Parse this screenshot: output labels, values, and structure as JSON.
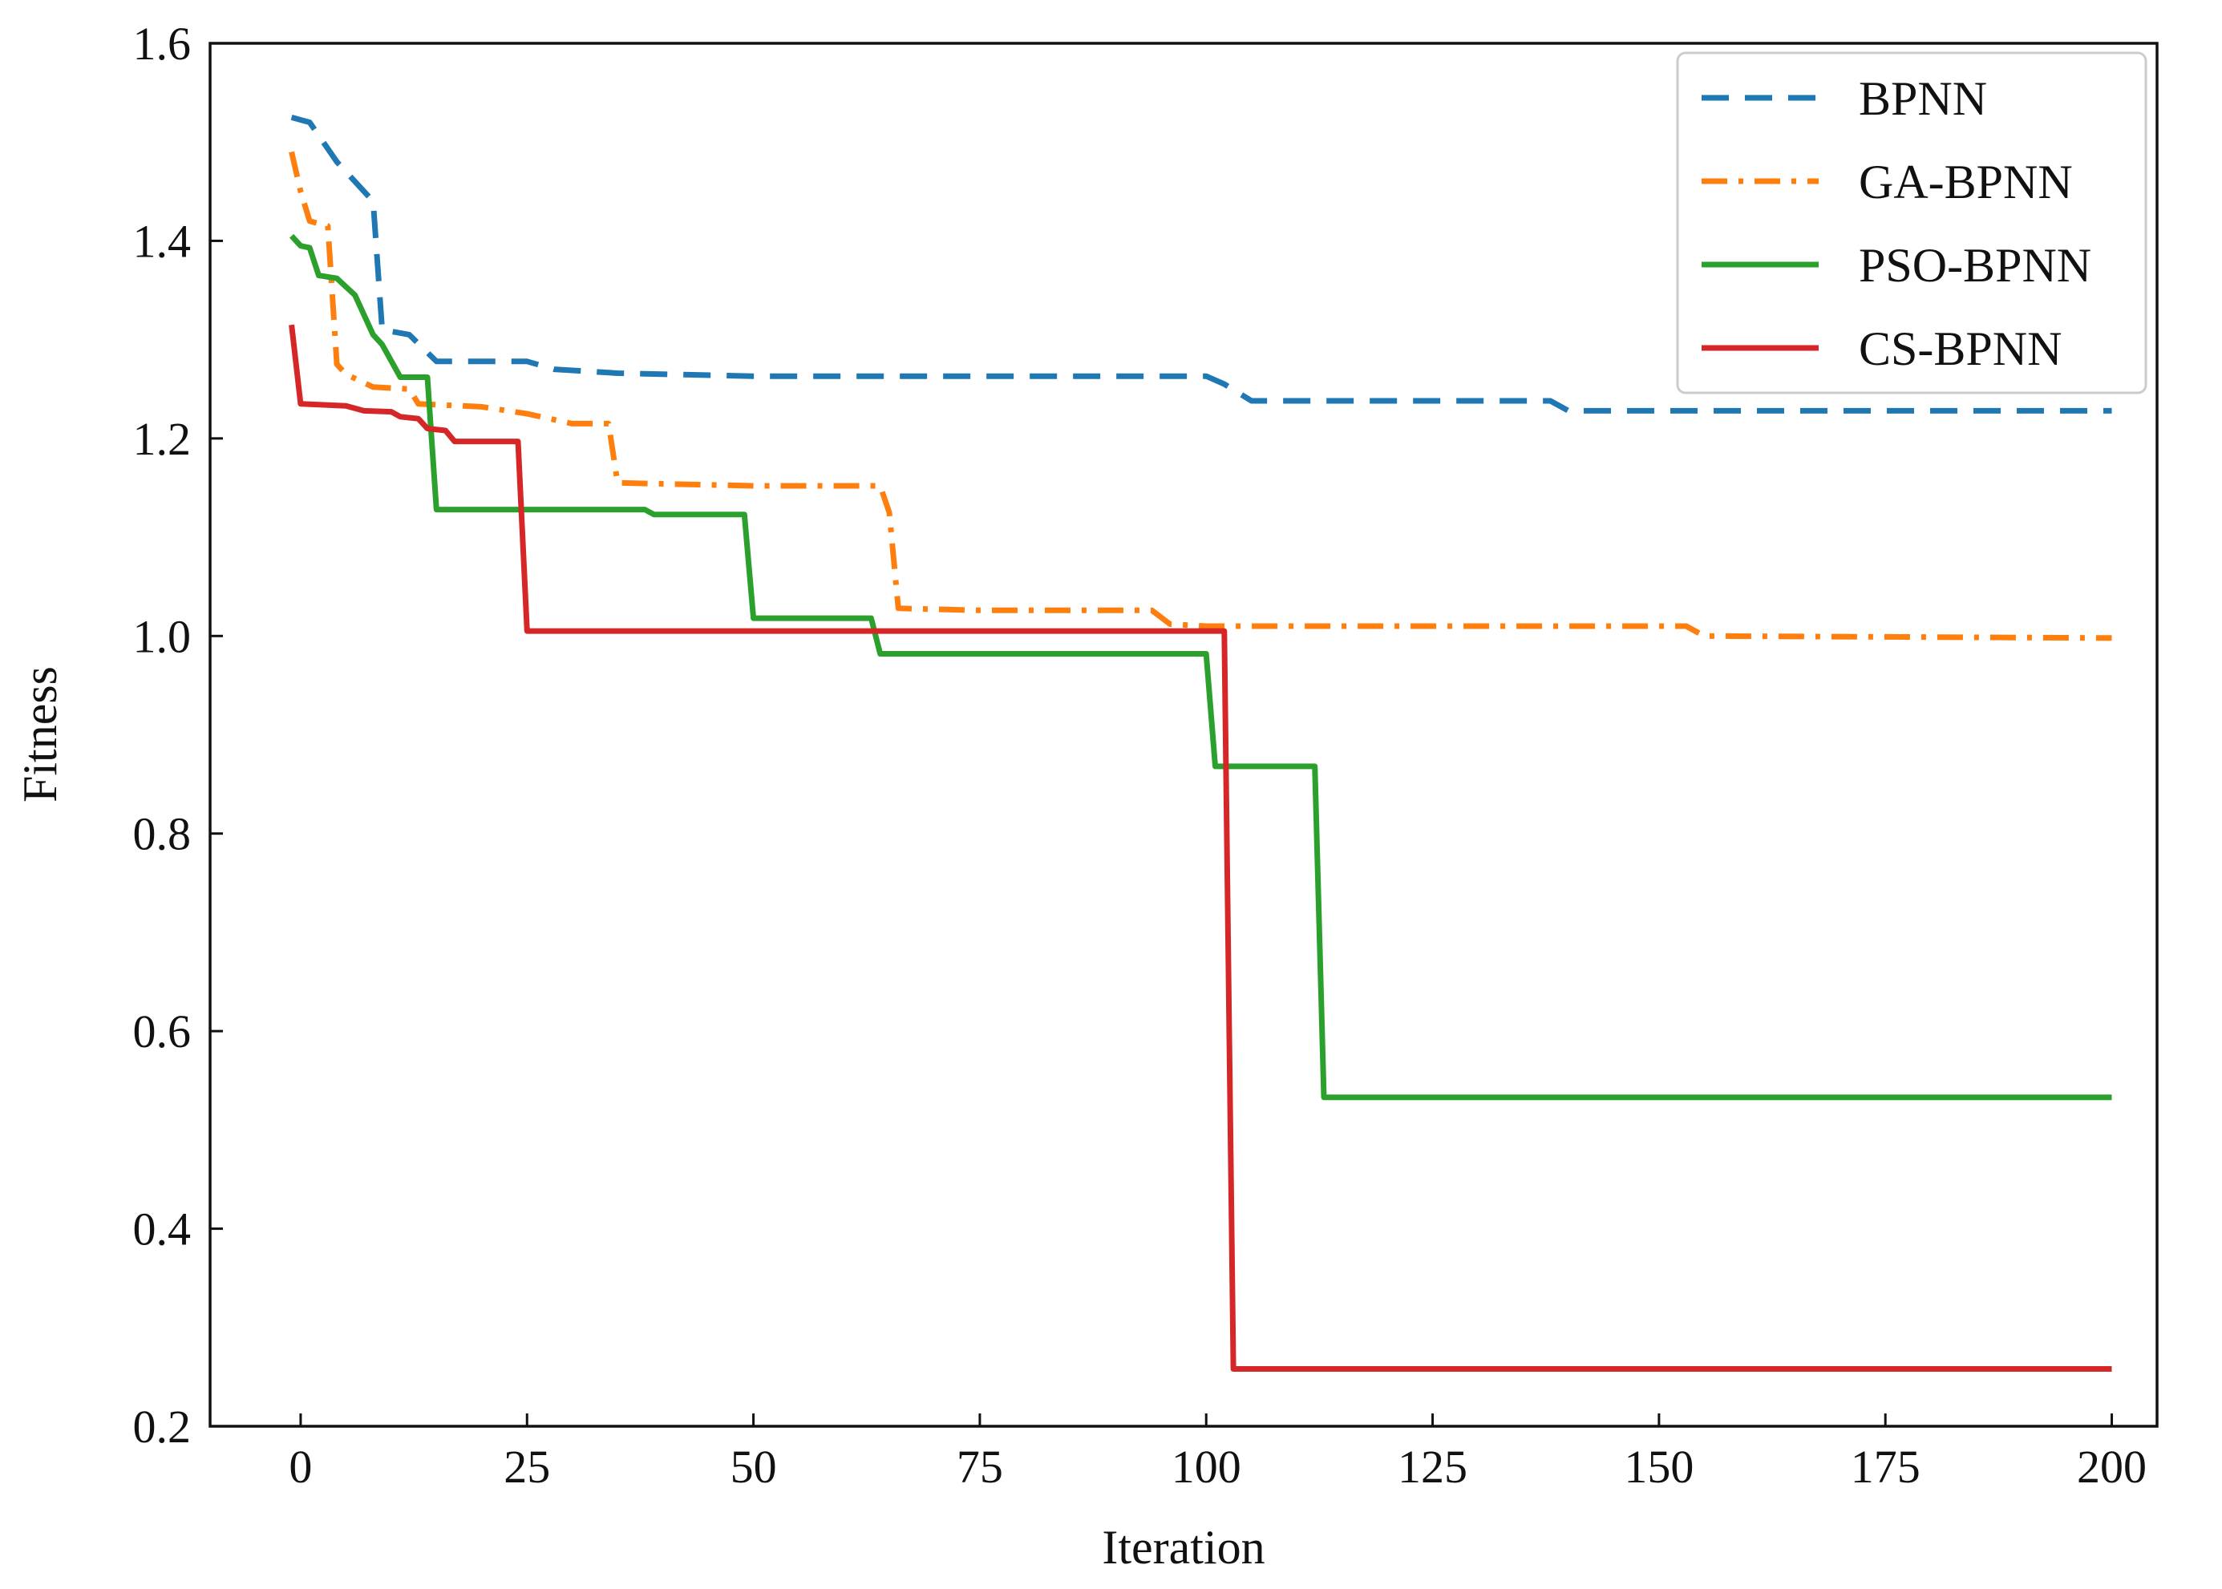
{
  "chart_data": {
    "type": "line",
    "title": "",
    "xlabel": "Iteration",
    "ylabel": "Fitness",
    "xlim": [
      -10,
      205
    ],
    "ylim": [
      0.2,
      1.6
    ],
    "xticks": [
      0,
      25,
      50,
      75,
      100,
      125,
      150,
      175,
      200
    ],
    "yticks": [
      0.2,
      0.4,
      0.6,
      0.8,
      1.0,
      1.2,
      1.4,
      1.6
    ],
    "xtick_labels": [
      "0",
      "25",
      "50",
      "75",
      "100",
      "125",
      "150",
      "175",
      "200"
    ],
    "ytick_labels": [
      "0.2",
      "0.4",
      "0.6",
      "0.8",
      "1.0",
      "1.2",
      "1.4",
      "1.6"
    ],
    "grid": false,
    "legend_position": "top-right",
    "series": [
      {
        "name": "BPNN",
        "color": "#1f77b4",
        "dash": "dashed",
        "points": [
          [
            -1,
            1.525
          ],
          [
            1,
            1.52
          ],
          [
            4,
            1.48
          ],
          [
            8,
            1.44
          ],
          [
            9,
            1.31
          ],
          [
            12,
            1.305
          ],
          [
            15,
            1.278
          ],
          [
            25,
            1.278
          ],
          [
            28,
            1.27
          ],
          [
            35,
            1.266
          ],
          [
            50,
            1.263
          ],
          [
            75,
            1.263
          ],
          [
            100,
            1.263
          ],
          [
            102,
            1.255
          ],
          [
            105,
            1.238
          ],
          [
            125,
            1.238
          ],
          [
            138,
            1.238
          ],
          [
            140,
            1.228
          ],
          [
            200,
            1.228
          ]
        ]
      },
      {
        "name": "GA-BPNN",
        "color": "#ff7f0e",
        "dash": "dashdot",
        "points": [
          [
            -1,
            1.49
          ],
          [
            0,
            1.45
          ],
          [
            1,
            1.42
          ],
          [
            3,
            1.415
          ],
          [
            4,
            1.275
          ],
          [
            5,
            1.265
          ],
          [
            8,
            1.252
          ],
          [
            12,
            1.25
          ],
          [
            13,
            1.235
          ],
          [
            20,
            1.232
          ],
          [
            25,
            1.225
          ],
          [
            30,
            1.215
          ],
          [
            34,
            1.215
          ],
          [
            35,
            1.155
          ],
          [
            50,
            1.152
          ],
          [
            64,
            1.152
          ],
          [
            65,
            1.125
          ],
          [
            66,
            1.028
          ],
          [
            75,
            1.026
          ],
          [
            94,
            1.026
          ],
          [
            96,
            1.012
          ],
          [
            100,
            1.01
          ],
          [
            153,
            1.01
          ],
          [
            155,
            1.0
          ],
          [
            200,
            0.998
          ]
        ]
      },
      {
        "name": "PSO-BPNN",
        "color": "#2ca02c",
        "dash": "solid",
        "points": [
          [
            -1,
            1.405
          ],
          [
            0,
            1.395
          ],
          [
            1,
            1.393
          ],
          [
            2,
            1.365
          ],
          [
            4,
            1.362
          ],
          [
            6,
            1.345
          ],
          [
            8,
            1.305
          ],
          [
            9,
            1.295
          ],
          [
            11,
            1.262
          ],
          [
            14,
            1.262
          ],
          [
            15,
            1.128
          ],
          [
            38,
            1.128
          ],
          [
            39,
            1.123
          ],
          [
            49,
            1.123
          ],
          [
            50,
            1.018
          ],
          [
            63,
            1.018
          ],
          [
            64,
            0.982
          ],
          [
            100,
            0.982
          ],
          [
            101,
            0.868
          ],
          [
            112,
            0.868
          ],
          [
            113,
            0.533
          ],
          [
            200,
            0.533
          ]
        ]
      },
      {
        "name": "CS-BPNN",
        "color": "#d62728",
        "dash": "solid",
        "points": [
          [
            -1,
            1.315
          ],
          [
            0,
            1.235
          ],
          [
            5,
            1.233
          ],
          [
            7,
            1.228
          ],
          [
            10,
            1.227
          ],
          [
            11,
            1.222
          ],
          [
            13,
            1.22
          ],
          [
            14,
            1.21
          ],
          [
            16,
            1.208
          ],
          [
            17,
            1.197
          ],
          [
            24,
            1.197
          ],
          [
            25,
            1.005
          ],
          [
            102,
            1.005
          ],
          [
            103,
            0.258
          ],
          [
            200,
            0.258
          ]
        ]
      }
    ]
  }
}
